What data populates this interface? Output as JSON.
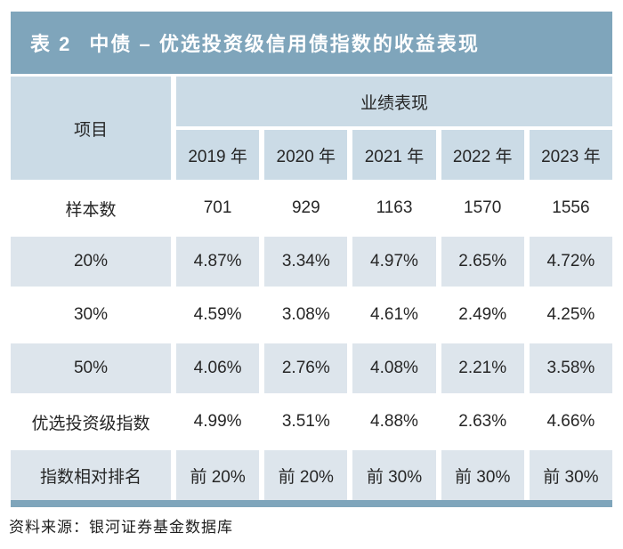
{
  "header": {
    "table_label": "表 2",
    "title": "中债 – 优选投资级信用债指数的收益表现"
  },
  "chart_data": {
    "type": "table",
    "corner_header": "项目",
    "group_header": "业绩表现",
    "year_columns": [
      "2019 年",
      "2020 年",
      "2021 年",
      "2022 年",
      "2023 年"
    ],
    "rows": [
      {
        "label": "样本数",
        "values": [
          "701",
          "929",
          "1163",
          "1570",
          "1556"
        ]
      },
      {
        "label": "20%",
        "values": [
          "4.87%",
          "3.34%",
          "4.97%",
          "2.65%",
          "4.72%"
        ]
      },
      {
        "label": "30%",
        "values": [
          "4.59%",
          "3.08%",
          "4.61%",
          "2.49%",
          "4.25%"
        ]
      },
      {
        "label": "50%",
        "values": [
          "4.06%",
          "2.76%",
          "4.08%",
          "2.21%",
          "3.58%"
        ]
      },
      {
        "label": "优选投资级指数",
        "values": [
          "4.99%",
          "3.51%",
          "4.88%",
          "2.63%",
          "4.66%"
        ]
      },
      {
        "label": "指数相对排名",
        "values": [
          "前 20%",
          "前 20%",
          "前 30%",
          "前 30%",
          "前 30%"
        ]
      }
    ]
  },
  "footer": {
    "source": "资料来源：银河证券基金数据库"
  },
  "colors": {
    "title_bar_bg": "#7fa5bb",
    "title_text": "#ffffff",
    "header_cell_bg": "#cbdbe6",
    "shaded_row_bg": "#dde5ec",
    "body_text": "#262626"
  }
}
